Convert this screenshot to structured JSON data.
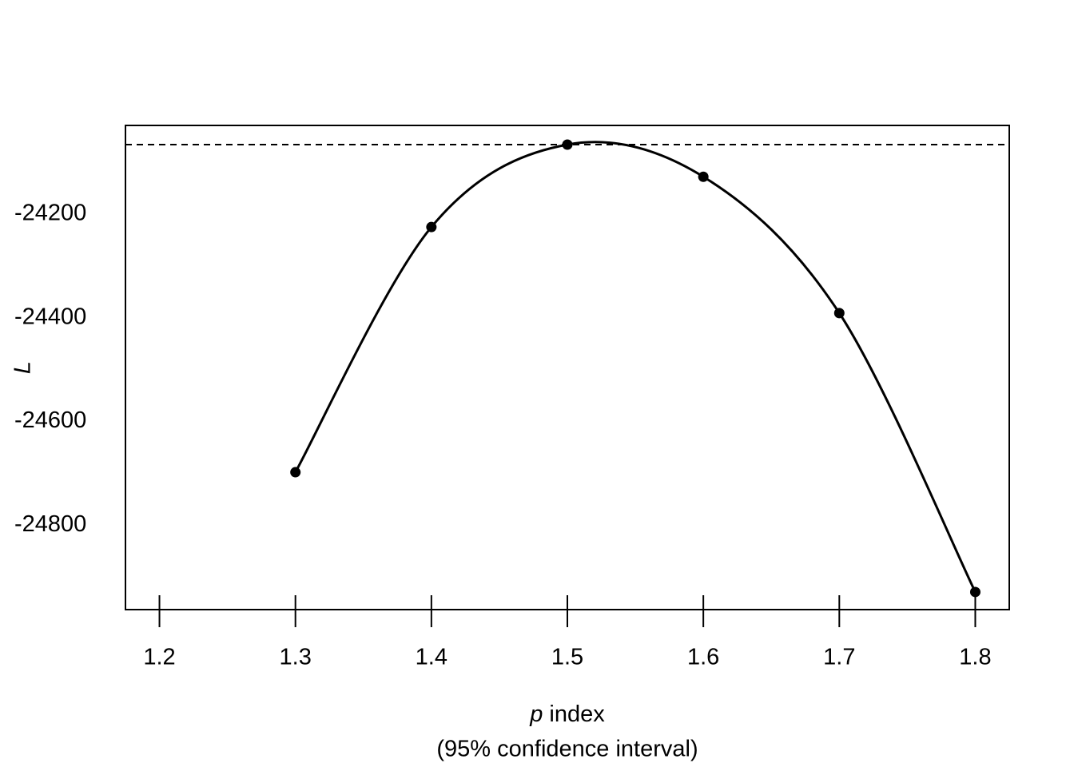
{
  "chart_data": {
    "type": "line",
    "y_label": "L",
    "x_label": {
      "symbol": "p",
      "text": "index"
    },
    "x_label_note": "(95% confidence interval)",
    "x": [
      1.3,
      1.4,
      1.5,
      1.6,
      1.7,
      1.8
    ],
    "series": [
      {
        "color": "#000000",
        "values": [
          -24698,
          -24225,
          -24066,
          -24128,
          -24391,
          -24929
        ]
      }
    ],
    "reference_line": -24066,
    "xlim": [
      1.175,
      1.825
    ],
    "ylim": [
      -24963,
      -24029
    ],
    "xticks": [
      1.2,
      1.3,
      1.4,
      1.5,
      1.6,
      1.7,
      1.8
    ],
    "yticks": [
      -24200,
      -24400,
      -24600,
      -24800
    ],
    "smooth": true,
    "markers": true
  }
}
